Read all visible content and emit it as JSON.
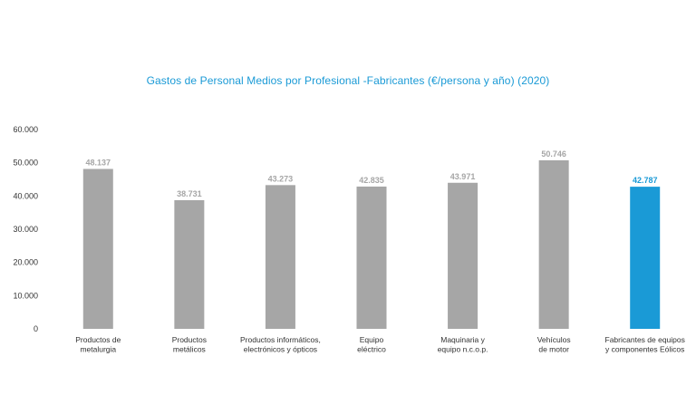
{
  "chart_data": {
    "type": "bar",
    "title": "Gastos de Personal Medios por Profesional -Fabricantes  (€/persona y año) (2020)",
    "xlabel": "",
    "ylabel": "",
    "ylim": [
      0,
      60000
    ],
    "yticks": [
      0,
      10000,
      20000,
      30000,
      40000,
      50000,
      60000
    ],
    "ytick_labels": [
      "0",
      "10.000",
      "20.000",
      "30.000",
      "40.000",
      "50.000",
      "60.000"
    ],
    "grid": false,
    "categories": [
      [
        "Productos de",
        "metalurgia"
      ],
      [
        "Productos",
        "metálicos"
      ],
      [
        "Productos informáticos,",
        "electrónicos y ópticos"
      ],
      [
        "Equipo",
        "eléctrico"
      ],
      [
        "Maquinaria y",
        "equipo n.c.o.p."
      ],
      [
        "Vehículos",
        "de motor"
      ],
      [
        "Fabricantes de equipos",
        "y componentes Eólicos"
      ]
    ],
    "values": [
      48137,
      38731,
      43273,
      42835,
      43971,
      50746,
      42787
    ],
    "value_labels": [
      "48.137",
      "38.731",
      "43.273",
      "42.835",
      "43.971",
      "50.746",
      "42.787"
    ],
    "colors": {
      "default_bar": "#a6a6a6",
      "highlight_bar": "#1a9ad6",
      "default_label": "#a6a6a6",
      "highlight_label": "#1a9ad6"
    },
    "highlight_index": 6
  }
}
